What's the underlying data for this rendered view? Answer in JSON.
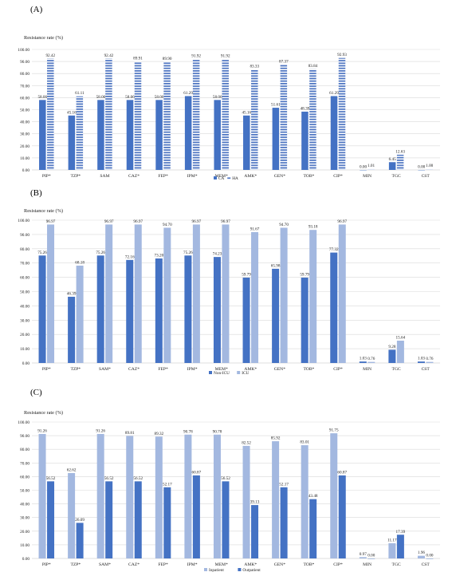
{
  "panel_labels": [
    "(A)",
    "(B)",
    "(C)"
  ],
  "colors": {
    "dark_blue": "#4472c4",
    "light_blue": "#a3b8e0",
    "stripe_blue": "#4a72c0",
    "grid": "#d9d9d9",
    "axis": "#bfbfbf"
  },
  "chart_data": [
    {
      "type": "bar",
      "ylabel": "Resistance rate (%)",
      "ylim": [
        0,
        100
      ],
      "yticks": [
        "0.00",
        "10.00",
        "20.00",
        "30.00",
        "40.00",
        "50.00",
        "60.00",
        "70.00",
        "80.00",
        "90.00",
        "100.00"
      ],
      "grid": true,
      "legend_position": "bottom",
      "categories": [
        "PIP*",
        "TZP*",
        "SAM",
        "CAZ*",
        "FEP*",
        "IPM*",
        "MEM*",
        "AMK*",
        "GEN*",
        "TOB*",
        "CIP*",
        "MIN",
        "TGC",
        "CST"
      ],
      "series": [
        {
          "name": "CA",
          "style": "solid-dark",
          "values": [
            58.06,
            45.16,
            58.06,
            58.06,
            58.06,
            61.29,
            58.06,
            45.16,
            51.61,
            48.39,
            61.29,
            0.0,
            6.45,
            0.0
          ],
          "labels": [
            "58.06",
            "45.16",
            "58.06",
            "58.06",
            "58.06",
            "61.29",
            "58.06",
            "45.16",
            "51.61",
            "48.39",
            "61.29",
            "0.00",
            "6.45",
            "0.00"
          ]
        },
        {
          "name": "HA",
          "style": "striped",
          "values": [
            92.42,
            61.11,
            92.42,
            89.91,
            89.9,
            91.92,
            91.92,
            83.33,
            87.37,
            83.84,
            92.93,
            1.01,
            12.63,
            1.0
          ],
          "labels": [
            "92.42",
            "61.11",
            "92.42",
            "89.91",
            "89.90",
            "91.92",
            "91.92",
            "83.33",
            "87.37",
            "83.84",
            "92.93",
            "1.01",
            "12.63",
            "1.00"
          ]
        }
      ]
    },
    {
      "type": "bar",
      "ylabel": "Resistance rate (%)",
      "ylim": [
        0,
        100
      ],
      "yticks": [
        "0.00",
        "10.00",
        "20.00",
        "30.00",
        "40.00",
        "50.00",
        "60.00",
        "70.00",
        "80.00",
        "90.00",
        "100.00"
      ],
      "grid": true,
      "legend_position": "bottom",
      "categories": [
        "PIP*",
        "TZP*",
        "SAM*",
        "CAZ*",
        "FEP*",
        "IPM*",
        "MEM*",
        "AMK*",
        "GEN*",
        "TOB*",
        "CIP*",
        "MIN",
        "TGC",
        "CST"
      ],
      "series": [
        {
          "name": "Non-ICU",
          "style": "solid-dark",
          "values": [
            75.26,
            46.39,
            75.26,
            72.16,
            73.2,
            75.26,
            74.23,
            59.79,
            65.98,
            59.79,
            77.32,
            1.03,
            9.28,
            1.03
          ],
          "labels": [
            "75.26",
            "46.39",
            "75.26",
            "72.16",
            "73.20",
            "75.26",
            "74.23",
            "59.79",
            "65.98",
            "59.79",
            "77.32",
            "1.03",
            "9.28",
            "1.03"
          ]
        },
        {
          "name": "ICU",
          "style": "solid-light",
          "values": [
            96.97,
            68.18,
            96.97,
            96.97,
            94.7,
            96.97,
            96.97,
            91.67,
            94.7,
            93.18,
            96.97,
            0.76,
            15.64,
            0.76
          ],
          "labels": [
            "96.97",
            "68.18",
            "96.97",
            "96.97",
            "94.70",
            "96.97",
            "96.97",
            "91.67",
            "94.70",
            "93.18",
            "96.97",
            "0.76",
            "15.64",
            "0.76"
          ]
        }
      ]
    },
    {
      "type": "bar",
      "ylabel": "Resistance rate (%)",
      "ylim": [
        0,
        100
      ],
      "yticks": [
        "0.00",
        "10.00",
        "20.00",
        "30.00",
        "40.00",
        "50.00",
        "60.00",
        "70.00",
        "80.00",
        "90.00",
        "100.00"
      ],
      "grid": true,
      "legend_position": "bottom",
      "categories": [
        "PIP*",
        "TZP*",
        "SAM*",
        "CAZ*",
        "FEP*",
        "IPM*",
        "MEM*",
        "AMK*",
        "GEN*",
        "TOB*",
        "CIP*",
        "MIN",
        "TGC",
        "CST"
      ],
      "series": [
        {
          "name": "Inpatient",
          "style": "solid-light",
          "values": [
            91.26,
            62.62,
            91.26,
            89.81,
            89.32,
            90.78,
            90.78,
            82.52,
            85.92,
            83.01,
            91.75,
            0.97,
            11.17,
            1.96
          ],
          "labels": [
            "91.26",
            "62.62",
            "91.26",
            "89.81",
            "89.32",
            "90.78",
            "90.78",
            "82.52",
            "85.92",
            "83.01",
            "91.75",
            "0.97",
            "11.17",
            "1.96"
          ]
        },
        {
          "name": "Outpatient",
          "style": "solid-dark",
          "values": [
            56.52,
            26.09,
            56.52,
            56.52,
            52.17,
            60.87,
            56.52,
            39.13,
            52.17,
            43.48,
            60.87,
            0.0,
            17.39,
            0.0
          ],
          "labels": [
            "56.52",
            "26.09",
            "56.52",
            "56.52",
            "52.17",
            "60.87",
            "56.52",
            "39.13",
            "52.17",
            "43.48",
            "60.87",
            "0.00",
            "17.39",
            "0.00"
          ]
        }
      ]
    }
  ]
}
